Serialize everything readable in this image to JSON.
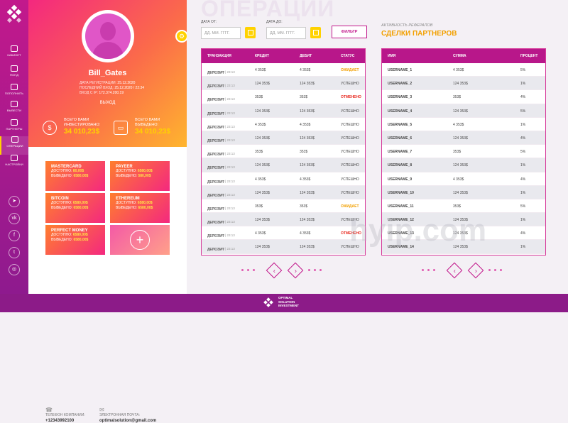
{
  "nav": [
    {
      "label": "КАБИНЕТ",
      "active": false
    },
    {
      "label": "ФОНД",
      "active": false
    },
    {
      "label": "ПОПОЛНИТЬ",
      "active": false
    },
    {
      "label": "ВЫВЕСТИ",
      "active": false
    },
    {
      "label": "ПАРТНЕРЫ",
      "active": false
    },
    {
      "label": "ОПЕРАЦИИ",
      "active": true
    },
    {
      "label": "НАСТРОЙКИ",
      "active": false
    }
  ],
  "social": [
    "telegram-icon",
    "vk-icon",
    "facebook-icon",
    "twitter-icon",
    "instagram-icon"
  ],
  "profile": {
    "username": "Bill_Gates",
    "reg_label": "ДАТА РЕГИСТРАЦИИ:",
    "reg_value": "25.12.2020",
    "last_label": "ПОСЛЕДНИЙ ВХОД:",
    "last_value": "25.12.2020 / 22:34",
    "ip_label": "ВХОД С IP:",
    "ip_value": "172.374.200.19",
    "logout": "ВЫХОД",
    "invested_label": "ВСЕГО ВАМИ ИНВЕСТИРОВАНО:",
    "invested_value": "34 010,23$",
    "paid_label": "ВСЕГО ВАМИ ВЫВЕДЕНО:",
    "paid_value": "34 010,23$"
  },
  "wallets": [
    {
      "name": "MASTERCARD",
      "dep_label": "ДОСТУПНО:",
      "dep": "80,00$",
      "wd_label": "ВЫВЕДЕНО:",
      "wd": "6580,00$"
    },
    {
      "name": "PAYEER",
      "dep_label": "ДОСТУПНО:",
      "dep": "6580,00$",
      "wd_label": "ВЫВЕДЕНО:",
      "wd": "580,00$"
    },
    {
      "name": "BITCOIN",
      "dep_label": "ДОСТУПНО:",
      "dep": "6580,00$",
      "wd_label": "ВЫВЕДЕНО:",
      "wd": "6580,00$"
    },
    {
      "name": "ETHEREUM",
      "dep_label": "ДОСТУПНО:",
      "dep": "6580,00$",
      "wd_label": "ВЫВЕДЕНО:",
      "wd": "6580,00$"
    },
    {
      "name": "PERFECT MONEY",
      "dep_label": "ДОСТУПНО:",
      "dep": "6580,00$",
      "wd_label": "ВЫВЕДЕНО:",
      "wd": "6580,00$"
    }
  ],
  "contacts": {
    "phone_label": "ТЕЛЕФОН КОМПАНИИ:",
    "phone": "+12343992100",
    "email_label": "ЭЛЕКТРОННАЯ ПОЧТА:",
    "email": "optimalsolution@gmail.com"
  },
  "operations": {
    "title": "ОПЕРАЦИИ",
    "date_from_label": "ДАТА ОТ:",
    "date_to_label": "ДАТА ДО:",
    "date_placeholder": "ДД. ММ. ГГГГ.",
    "filter": "ФИЛЬТР",
    "headers": [
      "ТРАНЗАКЦИЯ",
      "КРЕДИТ",
      "ДЕБИТ",
      "СТАТУС"
    ],
    "rows": [
      {
        "type": "ДЕПОЗИТ",
        "date": "23.09. 2020 | 23:13",
        "credit": "4 353$",
        "debit": "4 353$",
        "status": "ОЖИДАЕТ",
        "kind": "wait"
      },
      {
        "type": "ДЕПОЗИТ",
        "date": "23.09. 2020 | 23:13",
        "credit": "124 353$",
        "debit": "124 353$",
        "status": "УСПЕШНО",
        "kind": "ok"
      },
      {
        "type": "ДЕПОЗИТ",
        "date": "23.09. 2020 | 23:13",
        "credit": "353$",
        "debit": "353$",
        "status": "ОТМЕНЕНО",
        "kind": "cancel"
      },
      {
        "type": "ДЕПОЗИТ",
        "date": "23.09. 2020 | 23:13",
        "credit": "124 353$",
        "debit": "124 353$",
        "status": "УСПЕШНО",
        "kind": "ok"
      },
      {
        "type": "ДЕПОЗИТ",
        "date": "23.09. 2020 | 23:13",
        "credit": "4 353$",
        "debit": "4 353$",
        "status": "УСПЕШНО",
        "kind": "ok"
      },
      {
        "type": "ДЕПОЗИТ",
        "date": "23.09. 2020 | 23:13",
        "credit": "124 353$",
        "debit": "124 353$",
        "status": "УСПЕШНО",
        "kind": "ok"
      },
      {
        "type": "ДЕПОЗИТ",
        "date": "23.09. 2020 | 23:13",
        "credit": "353$",
        "debit": "353$",
        "status": "УСПЕШНО",
        "kind": "ok"
      },
      {
        "type": "ДЕПОЗИТ",
        "date": "23.09. 2020 | 23:13",
        "credit": "124 353$",
        "debit": "124 353$",
        "status": "УСПЕШНО",
        "kind": "ok"
      },
      {
        "type": "ДЕПОЗИТ",
        "date": "23.09. 2020 | 23:13",
        "credit": "4 353$",
        "debit": "4 353$",
        "status": "УСПЕШНО",
        "kind": "ok"
      },
      {
        "type": "ДЕПОЗИТ",
        "date": "23.09. 2020 | 23:13",
        "credit": "124 353$",
        "debit": "124 353$",
        "status": "УСПЕШНО",
        "kind": "ok"
      },
      {
        "type": "ДЕПОЗИТ",
        "date": "23.09. 2020 | 23:13",
        "credit": "353$",
        "debit": "353$",
        "status": "ОЖИДАЕТ",
        "kind": "wait"
      },
      {
        "type": "ДЕПОЗИТ",
        "date": "23.09. 2020 | 23:13",
        "credit": "124 353$",
        "debit": "124 353$",
        "status": "УСПЕШНО",
        "kind": "ok"
      },
      {
        "type": "ДЕПОЗИТ",
        "date": "23.09. 2020 | 23:13",
        "credit": "4 353$",
        "debit": "4 353$",
        "status": "ОТМЕНЕНО",
        "kind": "cancel"
      },
      {
        "type": "ДЕПОЗИТ",
        "date": "23.09. 2020 | 23:13",
        "credit": "124 353$",
        "debit": "124 353$",
        "status": "УСПЕШНО",
        "kind": "ok"
      }
    ]
  },
  "referrals": {
    "subtitle": "АКТИВНОСТЬ РЕФЕРАЛОВ",
    "title": "СДЕЛКИ ПАРТНЕРОВ",
    "headers": [
      "ИМЯ",
      "СУММА",
      "ПРОЦЕНТ"
    ],
    "rows": [
      {
        "name": "USERNAME_1",
        "sum": "4 353$",
        "pct": "5%"
      },
      {
        "name": "USERNAME_2",
        "sum": "124 353$",
        "pct": "1%"
      },
      {
        "name": "USERNAME_3",
        "sum": "353$",
        "pct": "4%"
      },
      {
        "name": "USERNAME_4",
        "sum": "124 353$",
        "pct": "5%"
      },
      {
        "name": "USERNAME_5",
        "sum": "4 353$",
        "pct": "1%"
      },
      {
        "name": "USERNAME_6",
        "sum": "124 353$",
        "pct": "4%"
      },
      {
        "name": "USERNAME_7",
        "sum": "353$",
        "pct": "5%"
      },
      {
        "name": "USERNAME_8",
        "sum": "124 353$",
        "pct": "1%"
      },
      {
        "name": "USERNAME_9",
        "sum": "4 353$",
        "pct": "4%"
      },
      {
        "name": "USERNAME_10",
        "sum": "124 353$",
        "pct": "1%"
      },
      {
        "name": "USERNAME_11",
        "sum": "353$",
        "pct": "5%"
      },
      {
        "name": "USERNAME_12",
        "sum": "124 353$",
        "pct": "1%"
      },
      {
        "name": "USERNAME_13",
        "sum": "124 353$",
        "pct": "4%"
      },
      {
        "name": "USERNAME_14",
        "sum": "124 353$",
        "pct": "1%"
      }
    ]
  },
  "watermark": "hyip.com",
  "footer": {
    "line1": "OPTIMAL",
    "line2": "SOLUTION",
    "line3": "INVESTMENT"
  },
  "colors": {
    "primary": "#b8178a",
    "accent": "#ffd200",
    "warning": "#f2a000",
    "danger": "#e8261c"
  }
}
